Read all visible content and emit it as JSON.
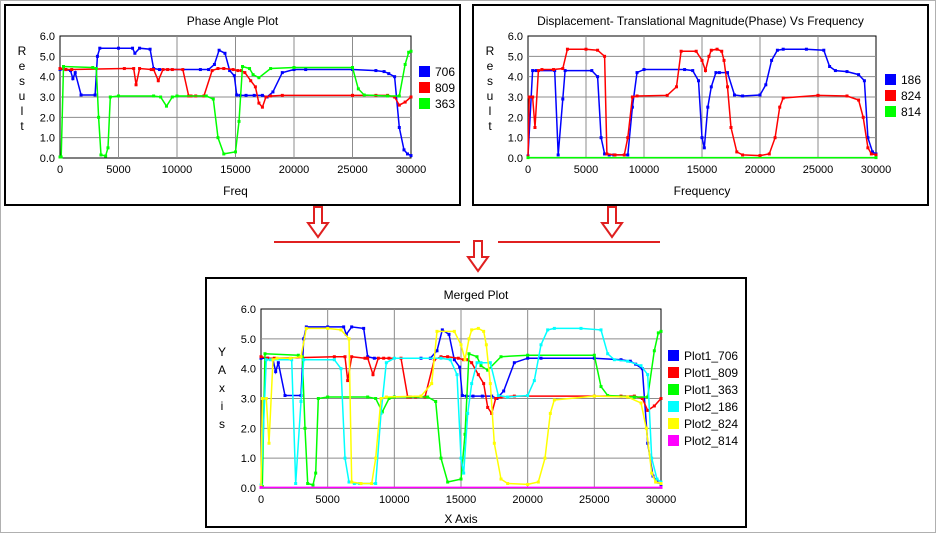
{
  "arrow_color": "#e02020",
  "chart_data": [
    {
      "type": "line",
      "title": "Phase Angle Plot",
      "xlabel": "Freq",
      "ylabel": "Result",
      "xlim": [
        0,
        30000
      ],
      "ylim": [
        0,
        6
      ],
      "xticks": [
        "0",
        "5000",
        "10000",
        "15000",
        "20000",
        "25000",
        "30000"
      ],
      "yticks": [
        "0.0",
        "1.0",
        "2.0",
        "3.0",
        "4.0",
        "5.0",
        "6.0"
      ],
      "grid": true,
      "legend": "right",
      "series": [
        {
          "name": "706",
          "color": "#0000ff",
          "x": [
            0,
            500,
            900,
            1100,
            1300,
            1800,
            3000,
            3200,
            3400,
            5000,
            6200,
            6400,
            6800,
            7700,
            8000,
            8500,
            12000,
            12700,
            13200,
            13600,
            14100,
            14500,
            14900,
            15100,
            15400,
            15900,
            16600,
            17300,
            17700,
            18200,
            19000,
            20000,
            21000,
            25000,
            27000,
            27700,
            28100,
            28600,
            29000,
            29400,
            29700,
            30000
          ],
          "y": [
            4.35,
            4.35,
            4.3,
            3.9,
            4.2,
            3.1,
            3.1,
            5.0,
            5.4,
            5.4,
            5.4,
            5.15,
            5.4,
            5.35,
            4.4,
            4.35,
            4.35,
            4.35,
            4.6,
            5.3,
            5.15,
            4.3,
            4.05,
            3.1,
            3.08,
            3.08,
            3.08,
            3.08,
            3.0,
            3.25,
            4.2,
            4.35,
            4.35,
            4.35,
            4.3,
            4.25,
            4.15,
            4.0,
            1.5,
            0.4,
            0.2,
            0.12
          ]
        },
        {
          "name": "809",
          "color": "#ff0000",
          "x": [
            0,
            500,
            1000,
            5500,
            6300,
            6500,
            6800,
            7800,
            8000,
            8400,
            8800,
            9200,
            9600,
            10500,
            11000,
            11200,
            11600,
            12300,
            13000,
            13500,
            14000,
            14800,
            15200,
            15500,
            15800,
            16300,
            16700,
            17000,
            17300,
            17600,
            18000,
            19000,
            25000,
            27000,
            28000,
            28600,
            29000,
            29500,
            30000
          ],
          "y": [
            4.4,
            4.35,
            4.35,
            4.4,
            4.4,
            3.6,
            4.4,
            4.35,
            4.35,
            3.8,
            4.35,
            4.35,
            4.35,
            4.35,
            3.05,
            3.05,
            3.05,
            3.05,
            4.3,
            4.4,
            4.4,
            4.35,
            4.3,
            4.3,
            4.2,
            3.8,
            3.5,
            2.7,
            2.5,
            3.0,
            3.05,
            3.08,
            3.08,
            3.08,
            3.08,
            3.0,
            2.6,
            2.75,
            3.0
          ]
        },
        {
          "name": "363",
          "color": "#00ff00",
          "x": [
            0,
            100,
            300,
            2800,
            3100,
            3300,
            3500,
            3900,
            4100,
            4300,
            5000,
            8000,
            8600,
            9100,
            9600,
            10000,
            12500,
            13100,
            13500,
            14000,
            15000,
            15300,
            15600,
            16200,
            16500,
            17000,
            18000,
            20000,
            25000,
            25500,
            26000,
            28000,
            29000,
            29500,
            29800,
            30000
          ],
          "y": [
            0.05,
            0.05,
            4.5,
            4.45,
            4.4,
            2.0,
            0.15,
            0.1,
            0.5,
            3.0,
            3.05,
            3.05,
            3.0,
            2.55,
            3.0,
            3.05,
            3.05,
            2.9,
            1.0,
            0.2,
            0.3,
            1.8,
            4.5,
            4.4,
            4.1,
            3.95,
            4.4,
            4.45,
            4.45,
            3.4,
            3.1,
            3.05,
            3.05,
            4.6,
            5.2,
            5.25
          ]
        }
      ]
    },
    {
      "type": "line",
      "title": "Displacement- Translational Magnitude(Phase) Vs Frequency",
      "xlabel": "Frequency",
      "ylabel": "Result",
      "xlim": [
        0,
        30000
      ],
      "ylim": [
        0,
        6
      ],
      "xticks": [
        "0",
        "5000",
        "10000",
        "15000",
        "20000",
        "25000",
        "30000"
      ],
      "yticks": [
        "0.0",
        "1.0",
        "2.0",
        "3.0",
        "4.0",
        "5.0",
        "6.0"
      ],
      "grid": true,
      "legend": "right",
      "series": [
        {
          "name": "186",
          "color": "#0000ff",
          "x": [
            0,
            400,
            700,
            2300,
            2600,
            3000,
            3200,
            5500,
            6000,
            6300,
            6600,
            7000,
            7400,
            8600,
            9000,
            9400,
            10000,
            13500,
            14200,
            14700,
            15000,
            15200,
            15500,
            15800,
            16200,
            16500,
            17200,
            17800,
            18500,
            20000,
            20500,
            21000,
            21500,
            22000,
            24000,
            25500,
            26000,
            26500,
            27500,
            28500,
            29000,
            29300,
            29700,
            30000
          ],
          "y": [
            0.1,
            4.3,
            4.3,
            4.3,
            0.15,
            2.9,
            4.3,
            4.3,
            4.0,
            1.0,
            0.2,
            0.15,
            0.15,
            0.15,
            2.5,
            4.2,
            4.35,
            4.35,
            4.3,
            3.8,
            1.0,
            0.5,
            2.5,
            3.5,
            4.2,
            4.2,
            4.2,
            3.1,
            3.05,
            3.1,
            3.6,
            4.8,
            5.3,
            5.35,
            5.35,
            5.3,
            4.5,
            4.3,
            4.25,
            4.1,
            3.8,
            1.0,
            0.3,
            0.2
          ]
        },
        {
          "name": "824",
          "color": "#ff0000",
          "x": [
            0,
            100,
            400,
            600,
            900,
            1200,
            2200,
            3000,
            3400,
            5000,
            6000,
            6600,
            6800,
            7500,
            8300,
            8600,
            9000,
            9400,
            12000,
            12800,
            13200,
            14500,
            15000,
            15300,
            15600,
            15800,
            16300,
            16700,
            16900,
            17200,
            17500,
            18000,
            18500,
            20000,
            20800,
            21300,
            21700,
            22000,
            25000,
            27500,
            28500,
            28900,
            29300,
            29600,
            30000
          ],
          "y": [
            0.05,
            3.0,
            3.0,
            1.5,
            4.3,
            4.35,
            4.35,
            4.4,
            5.35,
            5.35,
            5.3,
            5.0,
            0.2,
            0.15,
            0.15,
            1.0,
            3.0,
            3.05,
            3.08,
            3.5,
            5.25,
            5.25,
            4.8,
            4.3,
            5.0,
            5.3,
            5.35,
            5.25,
            4.8,
            3.5,
            1.5,
            0.3,
            0.15,
            0.12,
            0.2,
            1.0,
            2.5,
            2.95,
            3.08,
            3.05,
            2.85,
            2.0,
            0.5,
            0.2,
            0.15
          ]
        },
        {
          "name": "814",
          "color": "#00ff00",
          "x": [
            0,
            30000
          ],
          "y": [
            0.02,
            0.02
          ]
        }
      ]
    },
    {
      "type": "line",
      "title": "Merged Plot",
      "xlabel": "X Axis",
      "ylabel": "Y Axis",
      "xlim": [
        0,
        30000
      ],
      "ylim": [
        0,
        6
      ],
      "xticks": [
        "0",
        "5000",
        "10000",
        "15000",
        "20000",
        "25000",
        "30000"
      ],
      "yticks": [
        "0.0",
        "1.0",
        "2.0",
        "3.0",
        "4.0",
        "5.0",
        "6.0"
      ],
      "grid": true,
      "legend": "right",
      "series": [
        {
          "name": "Plot1_706",
          "color": "#0000ff",
          "x": [
            0,
            500,
            900,
            1100,
            1300,
            1800,
            3000,
            3200,
            3400,
            5000,
            6200,
            6400,
            6800,
            7700,
            8000,
            8500,
            12000,
            12700,
            13200,
            13600,
            14100,
            14500,
            14900,
            15100,
            15400,
            15900,
            16600,
            17300,
            17700,
            18200,
            19000,
            20000,
            21000,
            25000,
            27000,
            27700,
            28100,
            28600,
            29000,
            29400,
            29700,
            30000
          ],
          "y": [
            4.35,
            4.35,
            4.3,
            3.9,
            4.2,
            3.1,
            3.1,
            5.0,
            5.4,
            5.4,
            5.4,
            5.15,
            5.4,
            5.35,
            4.4,
            4.35,
            4.35,
            4.35,
            4.6,
            5.3,
            5.15,
            4.3,
            4.05,
            3.1,
            3.08,
            3.08,
            3.08,
            3.08,
            3.0,
            3.25,
            4.2,
            4.35,
            4.35,
            4.35,
            4.3,
            4.25,
            4.15,
            4.0,
            1.5,
            0.4,
            0.2,
            0.12
          ]
        },
        {
          "name": "Plot1_809",
          "color": "#ff0000",
          "x": [
            0,
            500,
            1000,
            5500,
            6300,
            6500,
            6800,
            7800,
            8000,
            8400,
            8800,
            9200,
            9600,
            10500,
            11000,
            11200,
            11600,
            12300,
            13000,
            13500,
            14000,
            14800,
            15200,
            15500,
            15800,
            16300,
            16700,
            17000,
            17300,
            17600,
            18000,
            19000,
            25000,
            27000,
            28000,
            28600,
            29000,
            29500,
            30000
          ],
          "y": [
            4.4,
            4.35,
            4.35,
            4.4,
            4.4,
            3.6,
            4.4,
            4.35,
            4.35,
            3.8,
            4.35,
            4.35,
            4.35,
            4.35,
            3.05,
            3.05,
            3.05,
            3.05,
            4.3,
            4.4,
            4.4,
            4.35,
            4.3,
            4.3,
            4.2,
            3.8,
            3.5,
            2.7,
            2.5,
            3.0,
            3.05,
            3.08,
            3.08,
            3.08,
            3.08,
            3.0,
            2.6,
            2.75,
            3.0
          ]
        },
        {
          "name": "Plot1_363",
          "color": "#00ff00",
          "x": [
            0,
            100,
            300,
            2800,
            3100,
            3300,
            3500,
            3900,
            4100,
            4300,
            5000,
            8000,
            8600,
            9100,
            9600,
            10000,
            12500,
            13100,
            13500,
            14000,
            15000,
            15300,
            15600,
            16200,
            16500,
            17000,
            18000,
            20000,
            25000,
            25500,
            26000,
            28000,
            29000,
            29500,
            29800,
            30000
          ],
          "y": [
            0.05,
            0.05,
            4.5,
            4.45,
            4.4,
            2.0,
            0.15,
            0.1,
            0.5,
            3.0,
            3.05,
            3.05,
            3.0,
            2.55,
            3.0,
            3.05,
            3.05,
            2.9,
            1.0,
            0.2,
            0.3,
            1.8,
            4.5,
            4.4,
            4.1,
            3.95,
            4.4,
            4.45,
            4.45,
            3.4,
            3.1,
            3.05,
            3.05,
            4.6,
            5.2,
            5.25
          ]
        },
        {
          "name": "Plot2_186",
          "color": "#00ffff",
          "x": [
            0,
            400,
            700,
            2300,
            2600,
            3000,
            3200,
            5500,
            6000,
            6300,
            6600,
            7000,
            7400,
            8600,
            9000,
            9400,
            10000,
            13500,
            14200,
            14700,
            15000,
            15200,
            15500,
            15800,
            16200,
            16500,
            17200,
            17800,
            18500,
            20000,
            20500,
            21000,
            21500,
            22000,
            24000,
            25500,
            26000,
            26500,
            27500,
            28500,
            29000,
            29300,
            29700,
            30000
          ],
          "y": [
            0.1,
            4.3,
            4.3,
            4.3,
            0.15,
            2.9,
            4.3,
            4.3,
            4.0,
            1.0,
            0.2,
            0.15,
            0.15,
            0.15,
            2.5,
            4.2,
            4.35,
            4.35,
            4.3,
            3.8,
            1.0,
            0.5,
            2.5,
            3.5,
            4.2,
            4.2,
            4.2,
            3.1,
            3.05,
            3.1,
            3.6,
            4.8,
            5.3,
            5.35,
            5.35,
            5.3,
            4.5,
            4.3,
            4.25,
            4.1,
            3.8,
            1.0,
            0.3,
            0.2
          ]
        },
        {
          "name": "Plot2_824",
          "color": "#ffff00",
          "x": [
            0,
            100,
            400,
            600,
            900,
            1200,
            2200,
            3000,
            3400,
            5000,
            6000,
            6600,
            6800,
            7500,
            8300,
            8600,
            9000,
            9400,
            12000,
            12800,
            13200,
            14500,
            15000,
            15300,
            15600,
            15800,
            16300,
            16700,
            16900,
            17200,
            17500,
            18000,
            18500,
            20000,
            20800,
            21300,
            21700,
            22000,
            25000,
            27500,
            28500,
            28900,
            29300,
            29600,
            30000
          ],
          "y": [
            0.05,
            3.0,
            3.0,
            1.5,
            4.3,
            4.35,
            4.35,
            4.4,
            5.35,
            5.35,
            5.3,
            5.0,
            0.2,
            0.15,
            0.15,
            1.0,
            3.0,
            3.05,
            3.08,
            3.5,
            5.25,
            5.25,
            4.8,
            4.3,
            5.0,
            5.3,
            5.35,
            5.25,
            4.8,
            3.5,
            1.5,
            0.3,
            0.15,
            0.12,
            0.2,
            1.0,
            2.5,
            2.95,
            3.08,
            3.05,
            2.85,
            2.0,
            0.5,
            0.2,
            0.15
          ]
        },
        {
          "name": "Plot2_814",
          "color": "#ff00ff",
          "x": [
            0,
            30000
          ],
          "y": [
            0.02,
            0.02
          ]
        }
      ]
    }
  ]
}
